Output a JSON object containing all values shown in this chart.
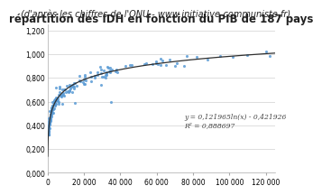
{
  "title": "répartition des IDH en fonction du PIB de 187 pays",
  "subtitle": "(d'après les chiffres de l'ONU - www.initiative-communiste.fr)",
  "equation": "y = 0,121965ln(x) - 0,421926",
  "r_squared": "R² = 0,888697",
  "a": 0.121965,
  "b": -0.421926,
  "xlim": [
    0,
    125000
  ],
  "ylim": [
    0.0,
    1.25
  ],
  "xticks": [
    0,
    20000,
    40000,
    60000,
    80000,
    100000,
    120000
  ],
  "yticks": [
    0.0,
    0.2,
    0.4,
    0.6,
    0.8,
    1.0,
    1.2
  ],
  "ytick_labels": [
    "0,000",
    "0,200",
    "0,400",
    "0,600",
    "0,800",
    "1,000",
    "1,200"
  ],
  "scatter_color": "#5b9bd5",
  "line_color": "#2f2f2f",
  "bg_color": "#ffffff",
  "title_fontsize": 8.5,
  "subtitle_fontsize": 7.0,
  "eq_fontsize": 5.5,
  "scatter_size": 5,
  "scatter_marker": "o",
  "seed": 42
}
